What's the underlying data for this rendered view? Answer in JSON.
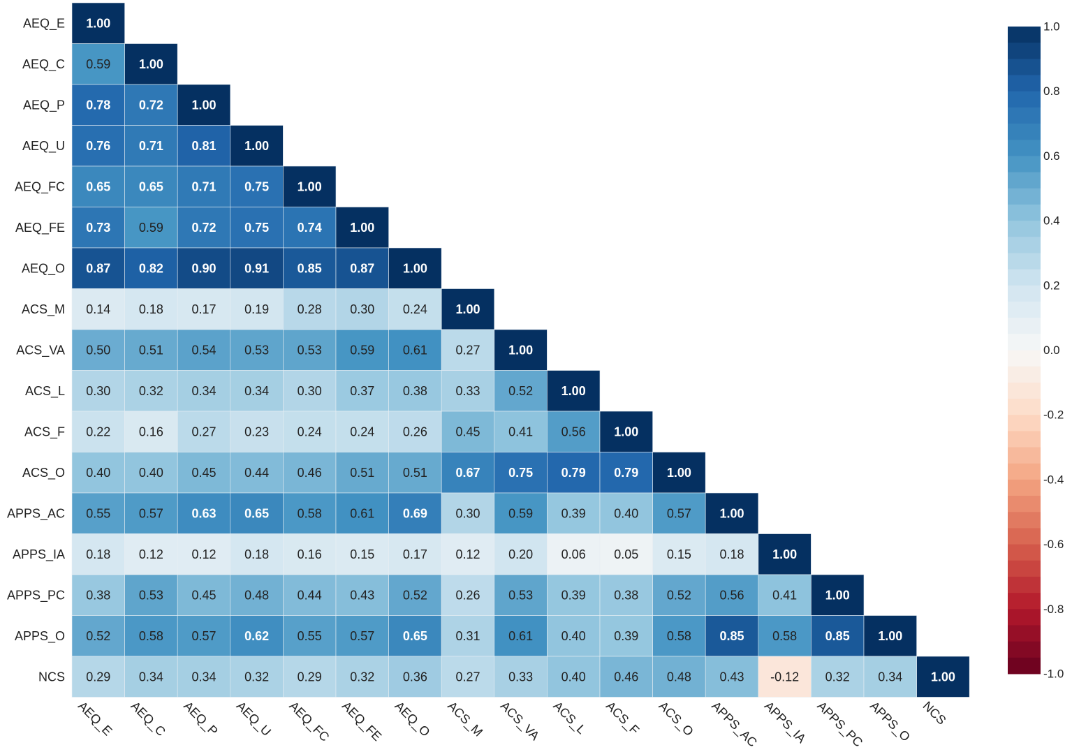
{
  "chart_data": {
    "type": "heatmap",
    "title": "",
    "variables": [
      "AEQ_E",
      "AEQ_C",
      "AEQ_P",
      "AEQ_U",
      "AEQ_FC",
      "AEQ_FE",
      "AEQ_O",
      "ACS_M",
      "ACS_VA",
      "ACS_L",
      "ACS_F",
      "ACS_O",
      "APPS_AC",
      "APPS_IA",
      "APPS_PC",
      "APPS_O",
      "NCS"
    ],
    "lower_triangle": [
      [
        1.0
      ],
      [
        0.59,
        1.0
      ],
      [
        0.78,
        0.72,
        1.0
      ],
      [
        0.76,
        0.71,
        0.81,
        1.0
      ],
      [
        0.65,
        0.65,
        0.71,
        0.75,
        1.0
      ],
      [
        0.73,
        0.59,
        0.72,
        0.75,
        0.74,
        1.0
      ],
      [
        0.87,
        0.82,
        0.9,
        0.91,
        0.85,
        0.87,
        1.0
      ],
      [
        0.14,
        0.18,
        0.17,
        0.19,
        0.28,
        0.3,
        0.24,
        1.0
      ],
      [
        0.5,
        0.51,
        0.54,
        0.53,
        0.53,
        0.59,
        0.61,
        0.27,
        1.0
      ],
      [
        0.3,
        0.32,
        0.34,
        0.34,
        0.3,
        0.37,
        0.38,
        0.33,
        0.52,
        1.0
      ],
      [
        0.22,
        0.16,
        0.27,
        0.23,
        0.24,
        0.24,
        0.26,
        0.45,
        0.41,
        0.56,
        1.0
      ],
      [
        0.4,
        0.4,
        0.45,
        0.44,
        0.46,
        0.51,
        0.51,
        0.67,
        0.75,
        0.79,
        0.79,
        1.0
      ],
      [
        0.55,
        0.57,
        0.63,
        0.65,
        0.58,
        0.61,
        0.69,
        0.3,
        0.59,
        0.39,
        0.4,
        0.57,
        1.0
      ],
      [
        0.18,
        0.12,
        0.12,
        0.18,
        0.16,
        0.15,
        0.17,
        0.12,
        0.2,
        0.06,
        0.05,
        0.15,
        0.18,
        1.0
      ],
      [
        0.38,
        0.53,
        0.45,
        0.48,
        0.44,
        0.43,
        0.52,
        0.26,
        0.53,
        0.39,
        0.38,
        0.52,
        0.56,
        0.41,
        1.0
      ],
      [
        0.52,
        0.58,
        0.57,
        0.62,
        0.55,
        0.57,
        0.65,
        0.31,
        0.61,
        0.4,
        0.39,
        0.58,
        0.85,
        0.58,
        0.85,
        1.0
      ],
      [
        0.29,
        0.34,
        0.34,
        0.32,
        0.29,
        0.32,
        0.36,
        0.27,
        0.33,
        0.4,
        0.46,
        0.48,
        0.43,
        -0.12,
        0.32,
        0.34,
        1.0
      ]
    ],
    "colorbar": {
      "range": [
        -1.0,
        1.0
      ],
      "ticks": [
        "1.0",
        "0.8",
        "0.6",
        "0.4",
        "0.2",
        "0.0",
        "-0.2",
        "-0.4",
        "-0.6",
        "-0.8",
        "-1.0"
      ],
      "colormap": "RdBu",
      "colors": [
        "#67001f",
        "#b2182b",
        "#d6604d",
        "#f4a582",
        "#fddbc7",
        "#f7f7f7",
        "#d1e5f0",
        "#92c5de",
        "#4393c3",
        "#2166ac",
        "#053061"
      ]
    },
    "legend_placement": "right"
  }
}
